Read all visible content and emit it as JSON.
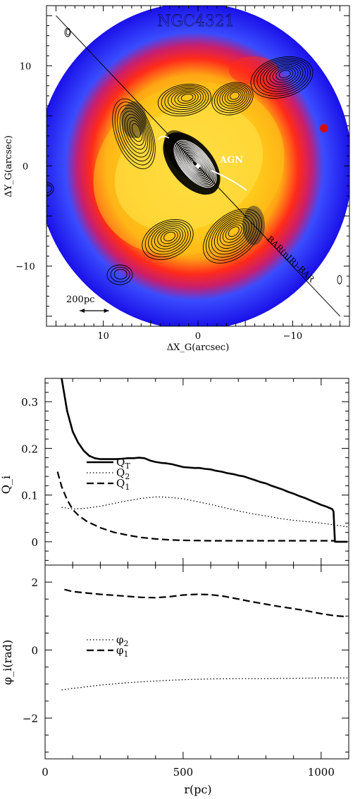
{
  "chart_data": [
    {
      "type": "heatmap",
      "title": "NGC4321",
      "xlabel": "ΔX_G(arcsec)",
      "ylabel": "ΔY_G(arcsec)",
      "xlim": [
        16,
        -16
      ],
      "ylim": [
        -16,
        16
      ],
      "x_ticks": [
        "10",
        "0",
        "−10"
      ],
      "x_tick_values": [
        10,
        0,
        -10
      ],
      "y_ticks": [
        "10",
        "0",
        "−10"
      ],
      "y_tick_values": [
        10,
        0,
        -10
      ],
      "annotations": {
        "agn": "AGN",
        "bar": "BAR(nIR)-BAR",
        "scale_bar": "200pc"
      },
      "scale_bar_arcsec": [
        12.5,
        9.4
      ],
      "bar_line": [
        [
          15,
          15
        ],
        [
          -15,
          -15
        ]
      ],
      "agn_marker": [
        0,
        0
      ],
      "colormap": [
        "#1a10e8",
        "#3a4cff",
        "#ff2020",
        "#ff8a10",
        "#ffd21e",
        "#fff066",
        "#000000",
        "#ffffff"
      ],
      "contour_color_outer": "#000000",
      "contour_color_inner": "#ffffff"
    },
    {
      "type": "line",
      "xlabel": "r(pc)",
      "ylabel": "Q_i",
      "xlim": [
        0,
        1100
      ],
      "ylim": [
        -0.05,
        0.35
      ],
      "y_ticks": [
        "0",
        "0.1",
        "0.2",
        "0.3"
      ],
      "y_tick_values": [
        0,
        0.1,
        0.2,
        0.3
      ],
      "grid": false,
      "legend_position": "center-left",
      "series": [
        {
          "name": "Q_T",
          "style": "solid-thick",
          "x": [
            60,
            80,
            100,
            120,
            140,
            160,
            180,
            200,
            220,
            240,
            260,
            280,
            300,
            320,
            340,
            360,
            380,
            400,
            420,
            440,
            460,
            480,
            500,
            520,
            540,
            560,
            580,
            600,
            620,
            640,
            660,
            680,
            700,
            720,
            740,
            760,
            780,
            800,
            820,
            840,
            860,
            880,
            900,
            920,
            940,
            960,
            980,
            1000,
            1020,
            1040,
            1045,
            1050,
            1070,
            1095
          ],
          "values": [
            0.35,
            0.28,
            0.236,
            0.212,
            0.195,
            0.184,
            0.179,
            0.177,
            0.177,
            0.177,
            0.177,
            0.178,
            0.179,
            0.179,
            0.18,
            0.179,
            0.174,
            0.171,
            0.169,
            0.168,
            0.166,
            0.163,
            0.16,
            0.159,
            0.158,
            0.158,
            0.156,
            0.155,
            0.152,
            0.15,
            0.147,
            0.145,
            0.142,
            0.14,
            0.136,
            0.132,
            0.128,
            0.125,
            0.12,
            0.116,
            0.112,
            0.107,
            0.103,
            0.098,
            0.094,
            0.089,
            0.084,
            0.079,
            0.075,
            0.07,
            0.065,
            0.0,
            0.0,
            0.0
          ]
        },
        {
          "name": "Q_2",
          "style": "dotted",
          "x": [
            60,
            100,
            150,
            200,
            250,
            300,
            350,
            400,
            420,
            450,
            500,
            550,
            600,
            650,
            700,
            750,
            800,
            850,
            900,
            950,
            1000,
            1050,
            1095
          ],
          "values": [
            0.074,
            0.07,
            0.072,
            0.076,
            0.082,
            0.088,
            0.093,
            0.096,
            0.096,
            0.095,
            0.092,
            0.086,
            0.08,
            0.073,
            0.066,
            0.06,
            0.055,
            0.05,
            0.046,
            0.043,
            0.04,
            0.036,
            0.032
          ]
        },
        {
          "name": "Q_1",
          "style": "dashed-thick",
          "x": [
            45,
            60,
            80,
            100,
            120,
            150,
            200,
            250,
            300,
            350,
            400,
            450,
            500,
            600,
            700,
            800,
            900,
            1000,
            1050
          ],
          "values": [
            0.15,
            0.118,
            0.09,
            0.069,
            0.057,
            0.044,
            0.03,
            0.02,
            0.014,
            0.009,
            0.006,
            0.004,
            0.003,
            0.002,
            0.002,
            0.002,
            0.002,
            0.002,
            0.002
          ]
        }
      ]
    },
    {
      "type": "line",
      "xlabel": "r(pc)",
      "ylabel": "φ_i(rad)",
      "xlim": [
        0,
        1100
      ],
      "ylim": [
        -3.2,
        2.5
      ],
      "x_ticks": [
        "0",
        "500",
        "1000"
      ],
      "x_tick_values": [
        0,
        500,
        1000
      ],
      "y_ticks": [
        "2",
        "0",
        "−2"
      ],
      "y_tick_values": [
        2,
        0,
        -2
      ],
      "grid": false,
      "legend_position": "center-left",
      "series": [
        {
          "name": "φ_2",
          "style": "dotted",
          "x": [
            60,
            100,
            150,
            200,
            300,
            400,
            500,
            600,
            700,
            800,
            900,
            1000,
            1095
          ],
          "values": [
            -1.17,
            -1.13,
            -1.08,
            -1.03,
            -0.96,
            -0.91,
            -0.87,
            -0.85,
            -0.84,
            -0.84,
            -0.83,
            -0.82,
            -0.82
          ]
        },
        {
          "name": "φ_1",
          "style": "dashed-thick",
          "x": [
            70,
            100,
            150,
            200,
            250,
            300,
            350,
            400,
            450,
            500,
            550,
            600,
            650,
            700,
            750,
            800,
            850,
            900,
            950,
            1000,
            1050,
            1095
          ],
          "values": [
            1.78,
            1.72,
            1.68,
            1.64,
            1.61,
            1.58,
            1.55,
            1.54,
            1.57,
            1.62,
            1.64,
            1.63,
            1.58,
            1.5,
            1.42,
            1.35,
            1.28,
            1.22,
            1.15,
            1.07,
            1.01,
            0.98
          ]
        }
      ]
    }
  ]
}
